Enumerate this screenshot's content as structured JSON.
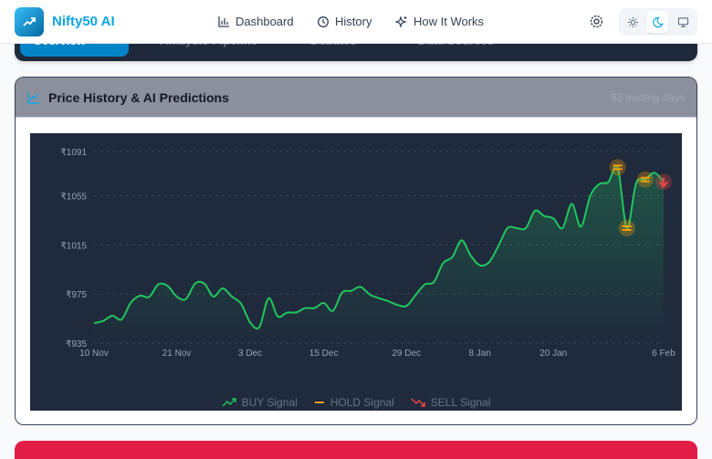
{
  "header": {
    "brand": "Nifty50 AI",
    "nav": [
      {
        "label": "Dashboard",
        "icon": "bar-chart-icon"
      },
      {
        "label": "History",
        "icon": "history-icon"
      },
      {
        "label": "How It Works",
        "icon": "sparkles-icon"
      }
    ],
    "theme_modes": [
      "light",
      "dark",
      "system"
    ],
    "theme_selected": "dark"
  },
  "tabs": [
    "Overview",
    "Analysis Pipeline",
    "Debates",
    "Data Sources"
  ],
  "card": {
    "title": "Price History & AI Predictions",
    "meta": "63 trading days"
  },
  "colors": {
    "accent": "#0ea5e9",
    "buy": "#22c55e",
    "hold": "#f59e0b",
    "sell": "#ef4444"
  },
  "chart_data": {
    "type": "line",
    "title": "Price History & AI Predictions",
    "ylim": [
      935,
      1091
    ],
    "y_ticks": [
      "₹1091",
      "₹1055",
      "₹1015",
      "₹975",
      "₹935"
    ],
    "y_tick_values": [
      1091,
      1055,
      1015,
      975,
      935
    ],
    "x_ticks": [
      {
        "label": "10 Nov",
        "index": 0
      },
      {
        "label": "21 Nov",
        "index": 9
      },
      {
        "label": "3 Dec",
        "index": 17
      },
      {
        "label": "15 Dec",
        "index": 25
      },
      {
        "label": "29 Dec",
        "index": 34
      },
      {
        "label": "8 Jan",
        "index": 42
      },
      {
        "label": "20 Jan",
        "index": 50
      },
      {
        "label": "6 Feb",
        "index": 62
      }
    ],
    "values": [
      951.3,
      953.1,
      957.3,
      954.3,
      967.9,
      973.6,
      972.6,
      982.8,
      981.6,
      972.9,
      970.9,
      983.5,
      983.5,
      972.9,
      979.6,
      972.9,
      967.2,
      951.8,
      948.1,
      971.6,
      956.8,
      959.8,
      960,
      963.5,
      963.5,
      967.7,
      961.3,
      976.1,
      977.6,
      980.8,
      974.6,
      971.6,
      969.2,
      966.2,
      965.2,
      974.1,
      982.8,
      984.8,
      1000.1,
      1005.1,
      1018.7,
      1006.3,
      998.4,
      1000.9,
      1013.8,
      1028.6,
      1028.6,
      1028.6,
      1042.7,
      1038.5,
      1036.5,
      1028.6,
      1048.4,
      1029.8,
      1054.6,
      1064.5,
      1066.2,
      1078.1,
      1028.6,
      1065,
      1068.2,
      1073.7,
      1066.2
    ],
    "signals": [
      {
        "index": 57,
        "type": "HOLD"
      },
      {
        "index": 58,
        "type": "HOLD"
      },
      {
        "index": 60,
        "type": "HOLD"
      },
      {
        "index": 62,
        "type": "SELL"
      }
    ],
    "legend": [
      "BUY Signal",
      "HOLD Signal",
      "SELL Signal"
    ],
    "legend_placement": "bottom",
    "grid": true
  }
}
